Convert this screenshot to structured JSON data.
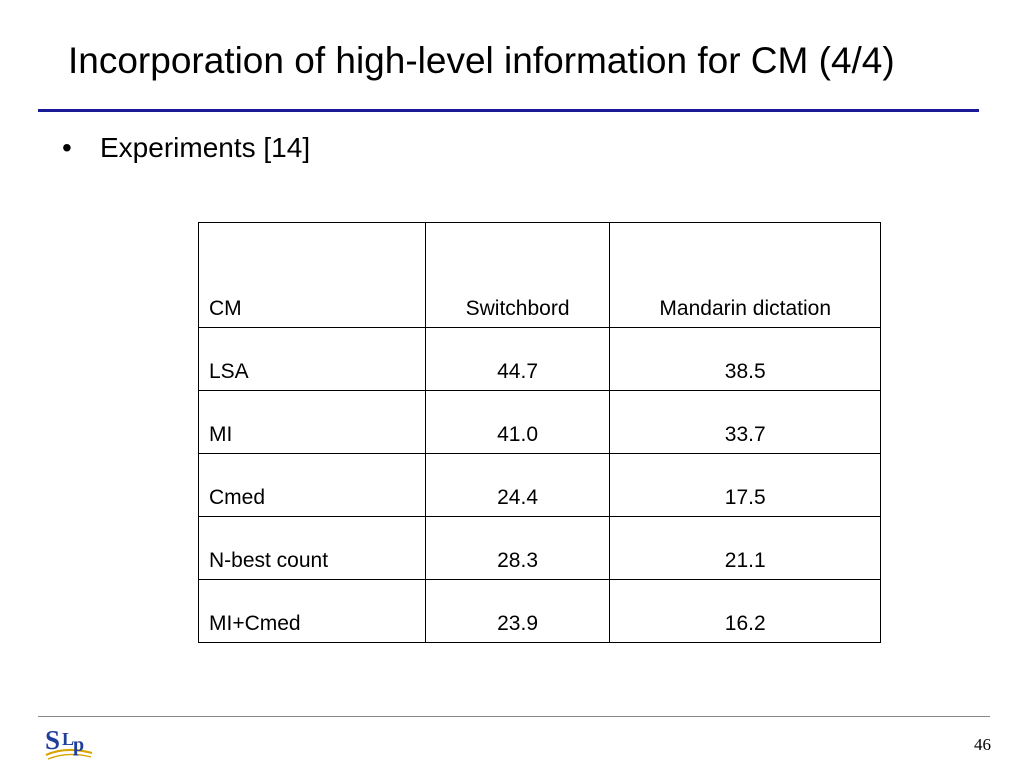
{
  "slide": {
    "title": "Incorporation of high-level information for CM (4/4)",
    "bullet_marker": "•",
    "bullet_text": "Experiments [14]",
    "logo_text": "SLP",
    "page_number": "46"
  },
  "table": {
    "headers": [
      "CM",
      "Switchbord",
      "Mandarin dictation"
    ],
    "rows": [
      [
        "LSA",
        "44.7",
        "38.5"
      ],
      [
        "MI",
        "41.0",
        "33.7"
      ],
      [
        "Cmed",
        "24.4",
        "17.5"
      ],
      [
        "N-best count",
        "28.3",
        "21.1"
      ],
      [
        "MI+Cmed",
        "23.9",
        "16.2"
      ]
    ]
  },
  "colors": {
    "title_rule": "#1a1a99",
    "logo_blue": "#1f3f9a",
    "logo_gold": "#d9a300"
  }
}
